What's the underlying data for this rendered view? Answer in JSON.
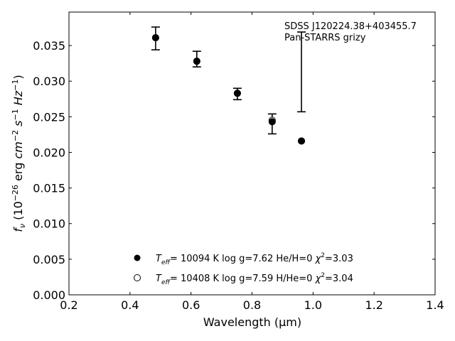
{
  "chart_data": {
    "type": "scatter",
    "title": "",
    "xlabel": "Wavelength (μm)",
    "ylabel_parts": {
      "f": "f",
      "nu": "ν",
      "open": " (10",
      "exp1": "−26",
      "mid": " erg ",
      "cm": "cm",
      "exp2": "−2",
      "s": " s",
      "exp3": "−1",
      "hz": " Hz",
      "exp4": "−1",
      "close": ")"
    },
    "xlim": [
      0.2,
      1.4
    ],
    "ylim": [
      0.0,
      0.0397
    ],
    "xticks": [
      0.2,
      0.4,
      0.6,
      0.8,
      1.0,
      1.2,
      1.4
    ],
    "xtick_labels": [
      "0.2",
      "0.4",
      "0.6",
      "0.8",
      "1.0",
      "1.2",
      "1.4"
    ],
    "yticks": [
      0.0,
      0.005,
      0.01,
      0.015,
      0.02,
      0.025,
      0.03,
      0.035
    ],
    "ytick_labels": [
      "0.000",
      "0.005",
      "0.010",
      "0.015",
      "0.020",
      "0.025",
      "0.030",
      "0.035"
    ],
    "grid": false,
    "annotation": [
      "SDSS J120224.38+403455.7",
      "Pan-STARRS grizy"
    ],
    "observed": {
      "name": "Pan-STARRS grizy",
      "x": [
        0.484,
        0.619,
        0.752,
        0.866,
        0.962
      ],
      "y": [
        0.036,
        0.0331,
        0.0282,
        0.024,
        0.0313
      ],
      "yerr": [
        0.0016,
        0.0011,
        0.0008,
        0.0014,
        0.0056
      ]
    },
    "series": [
      {
        "name": "Teff= 10094 K  log g=7.62  He/H=0  χ2=3.03",
        "marker": "filled",
        "legend": {
          "t": "T",
          "sub": "eff",
          "rest": "= 10094 K  log g=7.62  He/H=0  ",
          "chi": "χ",
          "sup": "2",
          "val": "=3.03"
        },
        "x": [
          0.484,
          0.619,
          0.752,
          0.866,
          0.962
        ],
        "y": [
          0.0361,
          0.0328,
          0.0283,
          0.0243,
          0.0216
        ]
      },
      {
        "name": "Teff= 10408 K  log g=7.59  H/He=0  χ2=3.04",
        "marker": "open",
        "legend": {
          "t": "T",
          "sub": "eff",
          "rest": "= 10408 K  log g=7.59  H/He=0  ",
          "chi": "χ",
          "sup": "2",
          "val": "=3.04"
        },
        "x": [
          0.484,
          0.619,
          0.752,
          0.866,
          0.962
        ],
        "y": [
          0.0361,
          0.0328,
          0.0283,
          0.0245,
          0.0216
        ]
      }
    ],
    "legend_position": "lower-center"
  }
}
